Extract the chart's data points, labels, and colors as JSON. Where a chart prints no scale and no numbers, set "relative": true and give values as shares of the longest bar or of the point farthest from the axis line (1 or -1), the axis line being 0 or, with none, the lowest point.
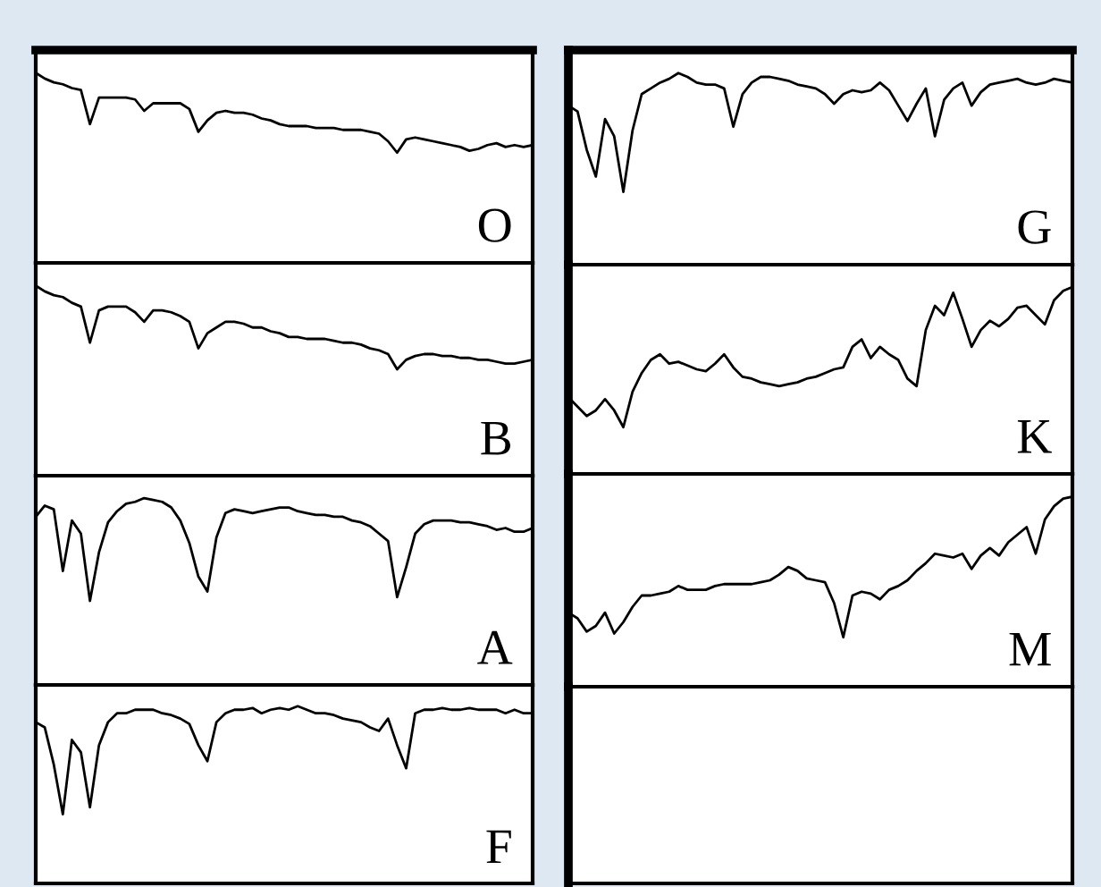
{
  "chart_data": [
    {
      "type": "line",
      "title": "O",
      "relative": true,
      "categories": [
        null,
        null,
        null,
        null,
        null,
        null,
        null,
        null,
        null,
        null,
        null,
        null,
        null,
        null,
        null,
        null,
        null,
        null,
        null,
        null,
        null,
        null,
        null,
        null,
        null,
        null,
        null,
        null,
        null,
        null,
        null,
        null,
        null,
        null,
        null,
        null,
        null,
        null,
        null,
        null,
        null,
        null,
        null,
        null,
        null,
        null,
        null,
        null,
        null,
        null,
        null,
        null,
        null,
        null,
        null,
        null
      ],
      "series": [
        {
          "color": "#000000",
          "values": [
            1.0,
            0.97,
            0.95,
            0.94,
            0.92,
            0.91,
            0.73,
            0.87,
            0.87,
            0.87,
            0.87,
            0.86,
            0.8,
            0.84,
            0.84,
            0.84,
            0.84,
            0.81,
            0.69,
            0.75,
            0.79,
            0.8,
            0.79,
            0.79,
            0.78,
            0.76,
            0.75,
            0.73,
            0.72,
            0.72,
            0.72,
            0.71,
            0.71,
            0.71,
            0.7,
            0.7,
            0.7,
            0.69,
            0.68,
            0.64,
            0.58,
            0.65,
            0.66,
            0.65,
            0.64,
            0.63,
            0.62,
            0.61,
            0.59,
            0.6,
            0.62,
            0.63,
            0.61,
            0.62,
            0.61,
            0.62
          ]
        }
      ]
    },
    {
      "type": "line",
      "title": "G",
      "relative": true,
      "categories": [
        null,
        null,
        null,
        null,
        null,
        null,
        null,
        null,
        null,
        null,
        null,
        null,
        null,
        null,
        null,
        null,
        null,
        null,
        null,
        null,
        null,
        null,
        null,
        null,
        null,
        null,
        null,
        null,
        null,
        null,
        null,
        null,
        null,
        null,
        null,
        null,
        null,
        null,
        null,
        null,
        null,
        null,
        null,
        null,
        null,
        null,
        null,
        null,
        null,
        null,
        null,
        null,
        null,
        null,
        null,
        null
      ],
      "series": [
        {
          "color": "#000000",
          "values": [
            0.83,
            0.8,
            0.6,
            0.46,
            0.76,
            0.67,
            0.38,
            0.7,
            0.89,
            0.92,
            0.95,
            0.97,
            1.0,
            0.98,
            0.95,
            0.94,
            0.94,
            0.92,
            0.72,
            0.89,
            0.95,
            0.98,
            0.98,
            0.97,
            0.96,
            0.94,
            0.93,
            0.92,
            0.89,
            0.84,
            0.89,
            0.91,
            0.9,
            0.91,
            0.95,
            0.91,
            0.83,
            0.75,
            0.84,
            0.92,
            0.67,
            0.86,
            0.92,
            0.95,
            0.83,
            0.9,
            0.94,
            0.95,
            0.96,
            0.97,
            0.95,
            0.94,
            0.95,
            0.97,
            0.96,
            0.95
          ]
        }
      ]
    },
    {
      "type": "line",
      "title": "B",
      "relative": true,
      "categories": [
        null,
        null,
        null,
        null,
        null,
        null,
        null,
        null,
        null,
        null,
        null,
        null,
        null,
        null,
        null,
        null,
        null,
        null,
        null,
        null,
        null,
        null,
        null,
        null,
        null,
        null,
        null,
        null,
        null,
        null,
        null,
        null,
        null,
        null,
        null,
        null,
        null,
        null,
        null,
        null,
        null,
        null,
        null,
        null,
        null,
        null,
        null,
        null,
        null,
        null,
        null,
        null,
        null,
        null,
        null,
        null
      ],
      "series": [
        {
          "color": "#000000",
          "values": [
            1.0,
            0.97,
            0.95,
            0.94,
            0.91,
            0.89,
            0.7,
            0.87,
            0.89,
            0.89,
            0.89,
            0.86,
            0.81,
            0.87,
            0.87,
            0.86,
            0.84,
            0.81,
            0.67,
            0.75,
            0.78,
            0.81,
            0.81,
            0.8,
            0.78,
            0.78,
            0.76,
            0.75,
            0.73,
            0.73,
            0.72,
            0.72,
            0.72,
            0.71,
            0.7,
            0.7,
            0.69,
            0.67,
            0.66,
            0.64,
            0.56,
            0.61,
            0.63,
            0.64,
            0.64,
            0.63,
            0.63,
            0.62,
            0.62,
            0.61,
            0.61,
            0.6,
            0.59,
            0.59,
            0.6,
            0.61
          ]
        }
      ]
    },
    {
      "type": "line",
      "title": "K",
      "relative": true,
      "categories": [
        null,
        null,
        null,
        null,
        null,
        null,
        null,
        null,
        null,
        null,
        null,
        null,
        null,
        null,
        null,
        null,
        null,
        null,
        null,
        null,
        null,
        null,
        null,
        null,
        null,
        null,
        null,
        null,
        null,
        null,
        null,
        null,
        null,
        null,
        null,
        null,
        null,
        null,
        null,
        null,
        null,
        null,
        null,
        null,
        null,
        null,
        null,
        null,
        null,
        null,
        null,
        null,
        null,
        null,
        null,
        null
      ],
      "series": [
        {
          "color": "#000000",
          "values": [
            0.41,
            0.36,
            0.31,
            0.34,
            0.4,
            0.34,
            0.25,
            0.44,
            0.54,
            0.61,
            0.64,
            0.59,
            0.6,
            0.58,
            0.56,
            0.55,
            0.59,
            0.64,
            0.57,
            0.52,
            0.51,
            0.49,
            0.48,
            0.47,
            0.48,
            0.49,
            0.51,
            0.52,
            0.54,
            0.56,
            0.57,
            0.68,
            0.72,
            0.62,
            0.68,
            0.64,
            0.61,
            0.51,
            0.47,
            0.77,
            0.9,
            0.85,
            0.97,
            0.83,
            0.68,
            0.77,
            0.82,
            0.79,
            0.83,
            0.89,
            0.9,
            0.85,
            0.8,
            0.93,
            0.98,
            1.0
          ]
        }
      ]
    },
    {
      "type": "line",
      "title": "A",
      "relative": true,
      "categories": [
        null,
        null,
        null,
        null,
        null,
        null,
        null,
        null,
        null,
        null,
        null,
        null,
        null,
        null,
        null,
        null,
        null,
        null,
        null,
        null,
        null,
        null,
        null,
        null,
        null,
        null,
        null,
        null,
        null,
        null,
        null,
        null,
        null,
        null,
        null,
        null,
        null,
        null,
        null,
        null,
        null,
        null,
        null,
        null,
        null,
        null,
        null,
        null,
        null,
        null,
        null,
        null,
        null,
        null,
        null,
        null
      ],
      "series": [
        {
          "color": "#000000",
          "values": [
            0.9,
            0.96,
            0.94,
            0.61,
            0.88,
            0.81,
            0.45,
            0.71,
            0.87,
            0.93,
            0.97,
            0.98,
            1.0,
            0.99,
            0.98,
            0.95,
            0.88,
            0.76,
            0.58,
            0.5,
            0.79,
            0.92,
            0.94,
            0.93,
            0.92,
            0.93,
            0.94,
            0.95,
            0.95,
            0.93,
            0.92,
            0.91,
            0.91,
            0.9,
            0.9,
            0.88,
            0.87,
            0.85,
            0.81,
            0.77,
            0.47,
            0.63,
            0.81,
            0.86,
            0.88,
            0.88,
            0.88,
            0.87,
            0.87,
            0.86,
            0.85,
            0.83,
            0.84,
            0.82,
            0.82,
            0.84
          ]
        }
      ]
    },
    {
      "type": "line",
      "title": "M",
      "relative": true,
      "categories": [
        null,
        null,
        null,
        null,
        null,
        null,
        null,
        null,
        null,
        null,
        null,
        null,
        null,
        null,
        null,
        null,
        null,
        null,
        null,
        null,
        null,
        null,
        null,
        null,
        null,
        null,
        null,
        null,
        null,
        null,
        null,
        null,
        null,
        null,
        null,
        null,
        null,
        null,
        null,
        null,
        null,
        null,
        null,
        null,
        null,
        null,
        null,
        null,
        null,
        null,
        null,
        null,
        null,
        null,
        null,
        null
      ],
      "series": [
        {
          "color": "#000000",
          "values": [
            0.39,
            0.36,
            0.29,
            0.32,
            0.39,
            0.28,
            0.34,
            0.42,
            0.48,
            0.48,
            0.49,
            0.5,
            0.53,
            0.51,
            0.51,
            0.51,
            0.53,
            0.54,
            0.54,
            0.54,
            0.54,
            0.55,
            0.56,
            0.59,
            0.63,
            0.61,
            0.57,
            0.56,
            0.55,
            0.44,
            0.26,
            0.48,
            0.5,
            0.49,
            0.46,
            0.51,
            0.53,
            0.56,
            0.61,
            0.65,
            0.7,
            0.69,
            0.68,
            0.7,
            0.62,
            0.69,
            0.73,
            0.69,
            0.76,
            0.8,
            0.84,
            0.7,
            0.88,
            0.95,
            0.99,
            1.0
          ]
        }
      ]
    },
    {
      "type": "line",
      "title": "F",
      "relative": true,
      "categories": [
        null,
        null,
        null,
        null,
        null,
        null,
        null,
        null,
        null,
        null,
        null,
        null,
        null,
        null,
        null,
        null,
        null,
        null,
        null,
        null,
        null,
        null,
        null,
        null,
        null,
        null,
        null,
        null,
        null,
        null,
        null,
        null,
        null,
        null,
        null,
        null,
        null,
        null,
        null,
        null,
        null,
        null,
        null,
        null,
        null,
        null,
        null,
        null,
        null,
        null,
        null,
        null,
        null,
        null,
        null,
        null
      ],
      "series": [
        {
          "color": "#000000",
          "values": [
            0.91,
            0.88,
            0.67,
            0.39,
            0.81,
            0.74,
            0.43,
            0.78,
            0.91,
            0.96,
            0.96,
            0.98,
            0.98,
            0.98,
            0.96,
            0.95,
            0.93,
            0.9,
            0.78,
            0.69,
            0.91,
            0.96,
            0.98,
            0.98,
            0.99,
            0.96,
            0.98,
            0.99,
            0.98,
            1.0,
            0.98,
            0.96,
            0.96,
            0.95,
            0.93,
            0.92,
            0.91,
            0.88,
            0.86,
            0.93,
            0.78,
            0.65,
            0.96,
            0.98,
            0.98,
            0.99,
            0.98,
            0.98,
            0.99,
            0.98,
            0.98,
            0.98,
            0.96,
            0.98,
            0.96,
            0.96
          ]
        }
      ]
    }
  ]
}
